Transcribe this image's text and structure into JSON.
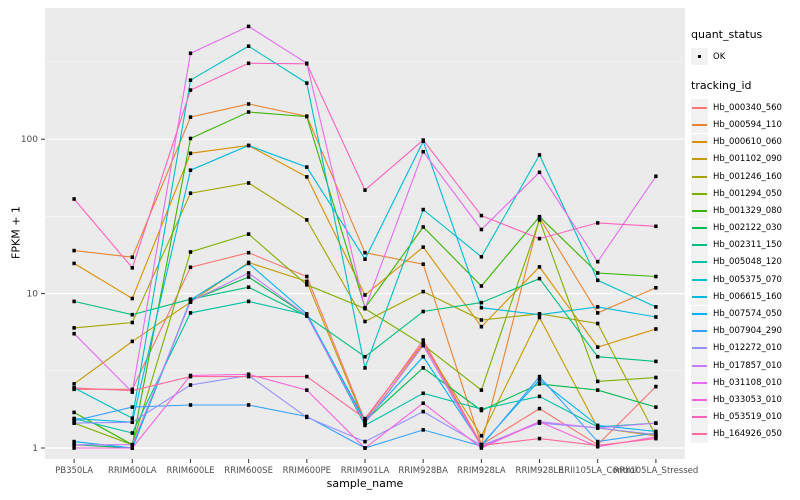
{
  "figure": {
    "background": "#FFFFFF",
    "panel_background": "#EBEBEB",
    "gridline_color": "#FFFFFF",
    "point_color": "#000000",
    "tick_color": "#333333",
    "tick_label_color": "#4D4D4D"
  },
  "y_axis": {
    "title": "FPKM + 1",
    "tick_labels": [
      "1",
      "10",
      "100"
    ]
  },
  "x_axis": {
    "title": "sample_name"
  },
  "legend": {
    "quant_status_title": "quant_status",
    "quant_status_items": [
      {
        "label": "OK",
        "marker": "black-point"
      }
    ],
    "tracking_id_title": "tracking_id"
  },
  "chart_data": {
    "type": "line",
    "title": "",
    "xlabel": "sample_name",
    "ylabel": "FPKM + 1",
    "y_scale": "log10",
    "y_major_ticks": [
      1,
      10,
      100
    ],
    "y_minor_ticks": [
      3.162,
      31.62,
      316.2
    ],
    "ylim": [
      0.85,
      700
    ],
    "grid": true,
    "legend_position": "right",
    "point_marker": "small black point (quant_status = OK) on every observation",
    "categories": [
      "PB350LA",
      "RRIM600LA",
      "RRIM600LE",
      "RRIM600SE",
      "RRIM600PE",
      "RRIM901LA",
      "RRIM928BA",
      "RRIM928LA",
      "RRIM928LE",
      "RRII105LA_Control",
      "RRII105LA_Stressed"
    ],
    "series": [
      {
        "name": "Hb_000340_560",
        "color": "#F8766D",
        "values": [
          2.4,
          2.4,
          14.8,
          18.4,
          12.9,
          1.5,
          5.0,
          1.05,
          1.8,
          1.05,
          2.5
        ]
      },
      {
        "name": "Hb_000594_110",
        "color": "#EA8331",
        "values": [
          19.0,
          17.2,
          139,
          169,
          141,
          18.4,
          15.5,
          1.05,
          31,
          7.5,
          10.9
        ]
      },
      {
        "name": "Hb_000610_060",
        "color": "#D89000",
        "values": [
          15.7,
          9.3,
          81,
          91,
          57,
          9.8,
          20,
          6.1,
          14.9,
          4.5,
          5.9
        ]
      },
      {
        "name": "Hb_001102_090",
        "color": "#C49A00",
        "values": [
          2.6,
          4.9,
          8.8,
          15.9,
          12.0,
          1.45,
          4.7,
          1.2,
          7.0,
          1.35,
          1.2
        ]
      },
      {
        "name": "Hb_001246_160",
        "color": "#A3A500",
        "values": [
          6.0,
          6.5,
          44.7,
          52,
          30,
          6.6,
          10.3,
          6.75,
          7.4,
          6.4,
          1.2
        ]
      },
      {
        "name": "Hb_001294_050",
        "color": "#7CAE00",
        "values": [
          1.45,
          1.05,
          18.6,
          24.3,
          11.4,
          8.0,
          4.65,
          2.37,
          30,
          2.7,
          2.86
        ]
      },
      {
        "name": "Hb_001329_080",
        "color": "#39B600",
        "values": [
          1.7,
          1.05,
          101,
          150,
          140,
          8.1,
          27,
          11.2,
          31.5,
          13.6,
          12.9
        ]
      },
      {
        "name": "Hb_002122_030",
        "color": "#00BB4E",
        "values": [
          1.05,
          1.0,
          9.0,
          12.8,
          7.2,
          1.5,
          3.3,
          1.75,
          2.6,
          2.37,
          1.84
        ]
      },
      {
        "name": "Hb_002311_150",
        "color": "#00BF7D",
        "values": [
          8.9,
          7.3,
          9.2,
          11.0,
          7.15,
          3.9,
          7.66,
          8.75,
          12.5,
          3.9,
          3.64
        ]
      },
      {
        "name": "Hb_005048_120",
        "color": "#00C1A3",
        "values": [
          1.55,
          1.25,
          7.5,
          8.9,
          7.3,
          1.4,
          2.26,
          1.79,
          2.16,
          1.37,
          1.45
        ]
      },
      {
        "name": "Hb_005375_070",
        "color": "#00BFC4",
        "values": [
          2.45,
          1.56,
          241,
          400,
          231,
          3.3,
          35,
          17.3,
          79,
          12.2,
          8.2
        ]
      },
      {
        "name": "Hb_006615_160",
        "color": "#00BAE0",
        "values": [
          1.55,
          1.47,
          63,
          91,
          66,
          16.7,
          97,
          8.1,
          7.3,
          8.2,
          7.05
        ]
      },
      {
        "name": "Hb_007574_050",
        "color": "#00B0F6",
        "values": [
          1.1,
          1.0,
          9.1,
          15.7,
          7.4,
          1.5,
          3.9,
          1.05,
          2.76,
          1.4,
          1.28
        ]
      },
      {
        "name": "Hb_007904_290",
        "color": "#35A2FF",
        "values": [
          1.5,
          1.84,
          1.9,
          1.9,
          1.6,
          1.0,
          1.31,
          1.03,
          2.9,
          1.1,
          1.25
        ]
      },
      {
        "name": "Hb_012272_010",
        "color": "#9590FF",
        "values": [
          1.45,
          1.47,
          2.56,
          2.95,
          1.58,
          1.1,
          1.72,
          1.04,
          1.45,
          1.35,
          1.22
        ]
      },
      {
        "name": "Hb_017857_010",
        "color": "#C77CFF",
        "values": [
          1.05,
          1.05,
          8.9,
          13.6,
          7.2,
          1.45,
          4.6,
          1.02,
          1.48,
          1.35,
          1.45
        ]
      },
      {
        "name": "Hb_031108_010",
        "color": "#E76BF3",
        "values": [
          5.5,
          2.3,
          360,
          538,
          310,
          8.0,
          83,
          26,
          61,
          16.1,
          57.5
        ]
      },
      {
        "name": "Hb_033053_010",
        "color": "#FA62DB",
        "values": [
          1.0,
          1.0,
          2.95,
          3.0,
          2.37,
          1.0,
          1.95,
          1.0,
          1.48,
          1.02,
          1.18
        ]
      },
      {
        "name": "Hb_053519_010",
        "color": "#FF62BC",
        "values": [
          41,
          14.7,
          208,
          310,
          308,
          46.8,
          98.6,
          32,
          22.7,
          28.7,
          27.3
        ]
      },
      {
        "name": "Hb_164926_050",
        "color": "#FF6A98",
        "values": [
          2.45,
          2.35,
          2.9,
          2.9,
          2.9,
          1.55,
          4.8,
          1.04,
          1.15,
          1.04,
          1.15
        ]
      }
    ]
  }
}
